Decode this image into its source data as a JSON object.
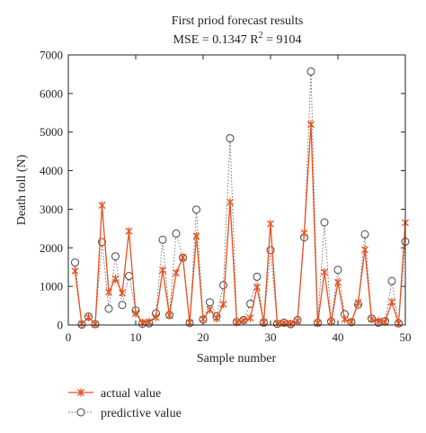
{
  "chart_data": {
    "type": "line",
    "title": "First priod forecast results",
    "subtitle_prefix": "MSE = 0.1347 R",
    "subtitle_sup": "2",
    "subtitle_suffix": " = 9104",
    "xlabel": "Sample number",
    "ylabel": "Death toll (N)",
    "xlim": [
      0,
      50
    ],
    "ylim": [
      0,
      7000
    ],
    "xticks": [
      0,
      10,
      20,
      30,
      40,
      50
    ],
    "yticks": [
      0,
      1000,
      2000,
      3000,
      4000,
      5000,
      6000,
      7000
    ],
    "grid": false,
    "legend_position": "bottom-left, below plot",
    "x": [
      1,
      2,
      3,
      4,
      5,
      6,
      7,
      8,
      9,
      10,
      11,
      12,
      13,
      14,
      15,
      16,
      17,
      18,
      19,
      20,
      21,
      22,
      23,
      24,
      25,
      26,
      27,
      28,
      29,
      30,
      31,
      32,
      33,
      34,
      35,
      36,
      37,
      38,
      39,
      40,
      41,
      42,
      43,
      44,
      45,
      46,
      47,
      48,
      49,
      50
    ],
    "series": [
      {
        "name": "actual value",
        "marker": "x",
        "line": "solid",
        "color": "#e8501e",
        "values": [
          1400,
          30,
          200,
          20,
          3100,
          850,
          1200,
          830,
          2430,
          300,
          60,
          80,
          200,
          1420,
          250,
          1350,
          1750,
          60,
          2300,
          150,
          400,
          170,
          540,
          3180,
          70,
          120,
          180,
          980,
          70,
          2620,
          40,
          50,
          30,
          100,
          2380,
          5200,
          50,
          1370,
          80,
          1100,
          150,
          80,
          580,
          1950,
          150,
          100,
          80,
          600,
          40,
          2650
        ]
      },
      {
        "name": "predictive value",
        "marker": "o",
        "line": "dotted",
        "color": "#666666",
        "values": [
          1620,
          10,
          220,
          20,
          2150,
          420,
          1780,
          520,
          1270,
          380,
          30,
          40,
          300,
          2210,
          260,
          2370,
          1740,
          50,
          2990,
          140,
          590,
          220,
          1030,
          4840,
          80,
          130,
          550,
          1250,
          60,
          1940,
          30,
          60,
          20,
          130,
          2270,
          6570,
          60,
          2660,
          90,
          1430,
          280,
          70,
          530,
          2350,
          170,
          60,
          100,
          1140,
          40,
          2160
        ]
      }
    ]
  }
}
